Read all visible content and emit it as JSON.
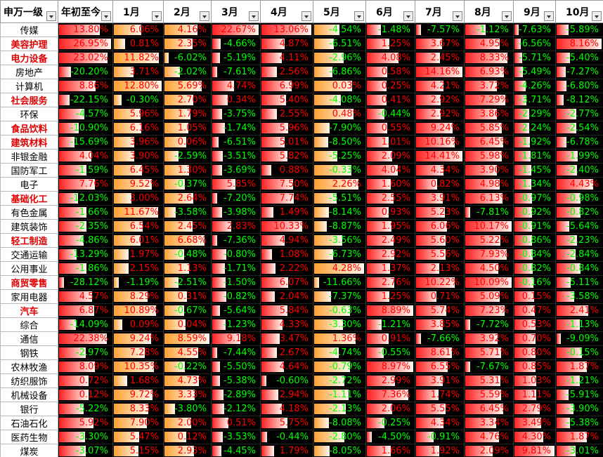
{
  "header": {
    "name": "申万一级",
    "ytd": "年初至今",
    "months": [
      "1月",
      "2月",
      "3月",
      "4月",
      "5月",
      "6月",
      "7月",
      "8月",
      "9月",
      "10月"
    ]
  },
  "bar_colors": [
    "#ff2020",
    "#ffa030",
    "#ffa030",
    "#ff2020",
    "#ff2020",
    "#ffa030",
    "#ff2020",
    "#ff2020",
    "#ff2020",
    "#ff2020",
    "#ff2020"
  ],
  "rows": [
    {
      "name": "传媒",
      "highlight": false,
      "values": [
        "13.80%",
        "6.06%",
        "4.16%",
        "22.67%",
        "13.06%",
        "-4.54%",
        "-1.48%",
        "-7.57%",
        "-1.12%",
        "-7.63%",
        "-5.89%"
      ]
    },
    {
      "name": "美容护理",
      "highlight": true,
      "values": [
        "26.95%",
        "0.81%",
        "2.35%",
        "-4.66%",
        "4.87%",
        "-6.51%",
        "1.25%",
        "3.67%",
        "4.95%",
        "-6.56%",
        "8.16%"
      ]
    },
    {
      "name": "电力设备",
      "highlight": true,
      "values": [
        "23.02%",
        "11.82%",
        "-6.02%",
        "-5.19%",
        "4.11%",
        "-2.96%",
        "4.08%",
        "2.45%",
        "8.33%",
        "-5.71%",
        "-5.40%"
      ]
    },
    {
      "name": "房地产",
      "highlight": false,
      "values": [
        "-20.20%",
        "3.71%",
        "-2.02%",
        "-7.61%",
        "2.56%",
        "-6.86%",
        "0.58%",
        "14.16%",
        "6.93%",
        "-5.49%",
        "-7.27%"
      ]
    },
    {
      "name": "计算机",
      "highlight": false,
      "values": [
        "8.86%",
        "12.80%",
        "5.69%",
        "4.74%",
        "6.99%",
        "0.03%",
        "0.25%",
        "4.21%",
        "3.72%",
        "-4.26%",
        "-6.80%"
      ]
    },
    {
      "name": "社会服务",
      "highlight": true,
      "values": [
        "-22.15%",
        "-0.30%",
        "2.70%",
        "0.34%",
        "5.40%",
        "-4.08%",
        "0.41%",
        "2.92%",
        "7.29%",
        "-3.71%",
        "-8.12%"
      ]
    },
    {
      "name": "环保",
      "highlight": false,
      "values": [
        "-4.57%",
        "5.96%",
        "1.79%",
        "-3.75%",
        "2.55%",
        "0.48%",
        "-0.44%",
        "2.92%",
        "3.86%",
        "-2.29%",
        "-2.77%"
      ]
    },
    {
      "name": "食品饮料",
      "highlight": true,
      "values": [
        "-10.90%",
        "6.16%",
        "1.05%",
        "-1.74%",
        "5.96%",
        "-7.90%",
        "0.55%",
        "9.24%",
        "5.85%",
        "-2.24%",
        "-2.54%"
      ]
    },
    {
      "name": "建筑材料",
      "highlight": true,
      "values": [
        "-15.69%",
        "3.96%",
        "0.06%",
        "-6.51%",
        "5.01%",
        "-8.50%",
        "1.01%",
        "10.16%",
        "6.45%",
        "-1.92%",
        "-6.78%"
      ]
    },
    {
      "name": "非银金融",
      "highlight": false,
      "values": [
        "4.04%",
        "3.90%",
        "-2.59%",
        "-3.51%",
        "5.82%",
        "-5.25%",
        "2.09%",
        "14.41%",
        "5.98%",
        "-1.81%",
        "-1.99%"
      ]
    },
    {
      "name": "国防军工",
      "highlight": false,
      "values": [
        "-1.59%",
        "6.45%",
        "1.30%",
        "-3.69%",
        "0.88%",
        "-0.33%",
        "4.04%",
        "4.34%",
        "3.90%",
        "-1.45%",
        "-2.40%"
      ]
    },
    {
      "name": "电子",
      "highlight": false,
      "values": [
        "7.76%",
        "9.52%",
        "-0.37%",
        "5.85%",
        "7.50%",
        "2.26%",
        "1.60%",
        "0.82%",
        "4.98%",
        "-1.34%",
        "4.43%"
      ]
    },
    {
      "name": "基础化工",
      "highlight": true,
      "values": [
        "-12.03%",
        "3.00%",
        "2.64%",
        "-7.20%",
        "7.74%",
        "-5.51%",
        "2.55%",
        "3.91%",
        "6.13%",
        "-0.97%",
        "-0.98%"
      ]
    },
    {
      "name": "有色金属",
      "highlight": false,
      "values": [
        "-1.66%",
        "11.67%",
        "-3.58%",
        "-3.98%",
        "1.49%",
        "-8.14%",
        "0.93%",
        "5.23%",
        "-7.81%",
        "-0.92%",
        "-0.82%"
      ]
    },
    {
      "name": "建筑装饰",
      "highlight": false,
      "values": [
        "-2.35%",
        "6.54%",
        "2.45%",
        "2.83%",
        "10.33%",
        "-8.87%",
        "1.95%",
        "6.06%",
        "10.17%",
        "-0.91%",
        "-5.64%"
      ]
    },
    {
      "name": "轻工制造",
      "highlight": true,
      "values": [
        "-4.86%",
        "6.01%",
        "6.68%",
        "-7.36%",
        "4.94%",
        "-3.56%",
        "2.49%",
        "5.60%",
        "5.22%",
        "-0.86%",
        "-2.23%"
      ]
    },
    {
      "name": "交通运输",
      "highlight": false,
      "values": [
        "-13.29%",
        "1.97%",
        "-0.48%",
        "-0.80%",
        "1.08%",
        "-6.73%",
        "2.92%",
        "5.56%",
        "7.93%",
        "-0.84%",
        "-2.84%"
      ]
    },
    {
      "name": "公用事业",
      "highlight": false,
      "values": [
        "-1.86%",
        "2.15%",
        "1.13%",
        "-1.71%",
        "2.22%",
        "4.28%",
        "1.37%",
        "2.13%",
        "4.50%",
        "-0.82%",
        "-0.84%"
      ]
    },
    {
      "name": "商贸零售",
      "highlight": true,
      "values": [
        "-28.12%",
        "-1.19%",
        "-2.51%",
        "-1.50%",
        "6.07%",
        "-11.66%",
        "2.76%",
        "10.22%",
        "10.09%",
        "-0.16%",
        "-5.11%"
      ]
    },
    {
      "name": "家用电器",
      "highlight": false,
      "values": [
        "4.57%",
        "8.29%",
        "0.31%",
        "-0.82%",
        "2.04%",
        "-7.37%",
        "1.25%",
        "0.71%",
        "5.09%",
        "0.15%",
        "-3.58%"
      ]
    },
    {
      "name": "汽车",
      "highlight": true,
      "values": [
        "6.87%",
        "10.89%",
        "-0.67%",
        "-5.64%",
        "5.84%",
        "-0.63%",
        "8.89%",
        "5.74%",
        "7.23%",
        "0.47%",
        "2.41%"
      ]
    },
    {
      "name": "综合",
      "highlight": false,
      "values": [
        "-14.09%",
        "0.09%",
        "0.04%",
        "-1.23%",
        "4.33%",
        "-3.30%",
        "-1.21%",
        "3.85%",
        "-7.72%",
        "0.53%",
        "-1.13%"
      ]
    },
    {
      "name": "通信",
      "highlight": false,
      "values": [
        "22.38%",
        "9.24%",
        "8.59%",
        "9.18%",
        "3.47%",
        "1.36%",
        "0.91%",
        "-7.66%",
        "3.92%",
        "0.70%",
        "-9.09%"
      ]
    },
    {
      "name": "钢铁",
      "highlight": false,
      "values": [
        "-2.97%",
        "7.28%",
        "4.55%",
        "-7.44%",
        "2.67%",
        "-4.74%",
        "-0.55%",
        "8.61%",
        "5.71%",
        "0.80%",
        "-0.15%"
      ]
    },
    {
      "name": "农林牧渔",
      "highlight": false,
      "values": [
        "8.09%",
        "10.35%",
        "-0.22%",
        "-5.50%",
        "4.64%",
        "-0.79%",
        "8.97%",
        "6.55%",
        "-7.67%",
        "0.85%",
        "1.87%"
      ]
    },
    {
      "name": "纺织服饰",
      "highlight": false,
      "values": [
        "0.72%",
        "1.68%",
        "4.73%",
        "-5.38%",
        "-0.60%",
        "-2.72%",
        "2.99%",
        "3.91%",
        "5.31%",
        "1.03%",
        "-1.21%"
      ]
    },
    {
      "name": "机械设备",
      "highlight": false,
      "values": [
        "0.12%",
        "9.72%",
        "3.33%",
        "-2.89%",
        "2.94%",
        "-1.11%",
        "7.36%",
        "1.74%",
        "5.59%",
        "1.11%",
        "-5.91%"
      ]
    },
    {
      "name": "银行",
      "highlight": false,
      "values": [
        "-5.22%",
        "8.33%",
        "-3.80%",
        "-2.12%",
        "4.18%",
        "-2.13%",
        "2.06%",
        "5.55%",
        "6.45%",
        "2.79%",
        "-3.90%"
      ]
    },
    {
      "name": "石油石化",
      "highlight": false,
      "values": [
        "5.92%",
        "7.90%",
        "2.00%",
        "0.51%",
        "5.75%",
        "-8.08%",
        "-0.25%",
        "4.34%",
        "3.34%",
        "3.49%",
        "-5.38%"
      ]
    },
    {
      "name": "医药生物",
      "highlight": false,
      "values": [
        "-3.30%",
        "5.47%",
        "0.12%",
        "-3.53%",
        "-0.44%",
        "-2.80%",
        "-4.50%",
        "-0.91%",
        "4.76%",
        "4.30%",
        "1.87%"
      ]
    },
    {
      "name": "煤炭",
      "highlight": false,
      "values": [
        "-3.07%",
        "5.15%",
        "2.93%",
        "-4.45%",
        "1.79%",
        "-8.05%",
        "1.66%",
        "1.92%",
        "2.09%",
        "9.81%",
        "-3.01%"
      ]
    }
  ]
}
